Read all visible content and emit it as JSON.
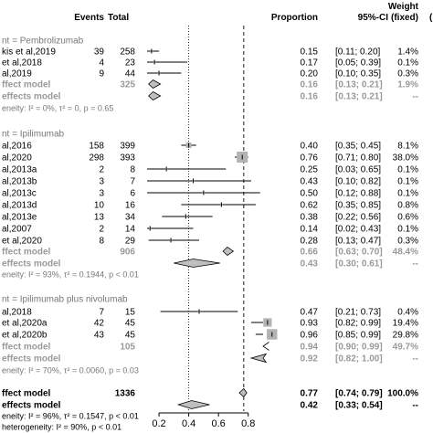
{
  "chart_data": {
    "type": "forest",
    "header": {
      "events": "Events",
      "total": "Total",
      "proportion": "Proportion",
      "ci": "95%-CI",
      "weight_fixed": "Weight",
      "weight_fixed_sub": "(fixed)",
      "weight_random_sub": "("
    },
    "xaxis": {
      "range": [
        0.12,
        0.9
      ],
      "ticks": [
        0.2,
        0.4,
        0.6,
        0.8
      ],
      "tick_labels": [
        "0.2",
        "0.4",
        "0.6",
        "0.8"
      ]
    },
    "reference_lines": {
      "solid": 0.4,
      "dashed_fixed": 0.77
    },
    "groups": [
      {
        "label": "nt = Pembrolizumab",
        "studies": [
          {
            "study": "kis et al,2019",
            "events": "39",
            "total": "258",
            "prop": 0.15,
            "lo": 0.11,
            "hi": 0.2,
            "prop_text": "0.15",
            "ci": "[0.11; 0.20]",
            "weight": "1.4%"
          },
          {
            "study": "et al,2018",
            "events": "4",
            "total": "23",
            "prop": 0.17,
            "lo": 0.05,
            "hi": 0.39,
            "prop_text": "0.17",
            "ci": "[0.05; 0.39]",
            "weight": "0.1%"
          },
          {
            "study": "al,2019",
            "events": "9",
            "total": "44",
            "prop": 0.2,
            "lo": 0.1,
            "hi": 0.35,
            "prop_text": "0.20",
            "ci": "[0.10; 0.35]",
            "weight": "0.3%"
          }
        ],
        "fixed": {
          "label": "ffect model",
          "total": "325",
          "prop": 0.16,
          "lo": 0.13,
          "hi": 0.21,
          "prop_text": "0.16",
          "ci": "[0.13; 0.21]",
          "weight": "1.9%"
        },
        "random": {
          "label": "effects model",
          "prop": 0.16,
          "lo": 0.13,
          "hi": 0.21,
          "prop_text": "0.16",
          "ci": "[0.13; 0.21]",
          "weight": "--"
        },
        "heterogeneity": "eneity: I² = 0%, τ² = 0, p = 0.65"
      },
      {
        "label": "nt = Ipilimumab",
        "studies": [
          {
            "study": "al,2016",
            "events": "158",
            "total": "399",
            "prop": 0.4,
            "lo": 0.35,
            "hi": 0.45,
            "prop_text": "0.40",
            "ci": "[0.35; 0.45]",
            "weight": "8.1%"
          },
          {
            "study": "al,2020",
            "events": "298",
            "total": "393",
            "prop": 0.76,
            "lo": 0.71,
            "hi": 0.8,
            "prop_text": "0.76",
            "ci": "[0.71; 0.80]",
            "weight": "38.0%"
          },
          {
            "study": "al,2013a",
            "events": "2",
            "total": "8",
            "prop": 0.25,
            "lo": 0.03,
            "hi": 0.65,
            "prop_text": "0.25",
            "ci": "[0.03; 0.65]",
            "weight": "0.1%"
          },
          {
            "study": "al,2013b",
            "events": "3",
            "total": "7",
            "prop": 0.43,
            "lo": 0.1,
            "hi": 0.82,
            "prop_text": "0.43",
            "ci": "[0.10; 0.82]",
            "weight": "0.1%"
          },
          {
            "study": "al,2013c",
            "events": "3",
            "total": "6",
            "prop": 0.5,
            "lo": 0.12,
            "hi": 0.88,
            "prop_text": "0.50",
            "ci": "[0.12; 0.88]",
            "weight": "0.1%"
          },
          {
            "study": "al,2013d",
            "events": "10",
            "total": "16",
            "prop": 0.62,
            "lo": 0.35,
            "hi": 0.85,
            "prop_text": "0.62",
            "ci": "[0.35; 0.85]",
            "weight": "0.8%"
          },
          {
            "study": "al,2013e",
            "events": "13",
            "total": "34",
            "prop": 0.38,
            "lo": 0.22,
            "hi": 0.56,
            "prop_text": "0.38",
            "ci": "[0.22; 0.56]",
            "weight": "0.6%"
          },
          {
            "study": "al,2007",
            "events": "2",
            "total": "14",
            "prop": 0.14,
            "prop_text": "0.14",
            "lo": 0.02,
            "hi": 0.43,
            "ci": "[0.02; 0.43]",
            "weight": "0.1%"
          },
          {
            "study": "et al,2020",
            "events": "8",
            "total": "29",
            "prop": 0.28,
            "lo": 0.13,
            "hi": 0.47,
            "prop_text": "0.28",
            "ci": "[0.13; 0.47]",
            "weight": "0.3%"
          }
        ],
        "fixed": {
          "label": "ffect model",
          "total": "906",
          "prop": 0.66,
          "lo": 0.63,
          "hi": 0.7,
          "prop_text": "0.66",
          "ci": "[0.63; 0.70]",
          "weight": "48.4%"
        },
        "random": {
          "label": "effects model",
          "prop": 0.43,
          "lo": 0.3,
          "hi": 0.61,
          "prop_text": "0.43",
          "ci": "[0.30; 0.61]",
          "weight": "--"
        },
        "heterogeneity": "eneity: I² = 93%, τ² = 0.1944, p < 0.01"
      },
      {
        "label": "nt = Ipilimumab plus nivolumab",
        "studies": [
          {
            "study": "al,2018",
            "events": "7",
            "total": "15",
            "prop": 0.47,
            "lo": 0.21,
            "hi": 0.73,
            "prop_text": "0.47",
            "ci": "[0.21; 0.73]",
            "weight": "0.4%"
          },
          {
            "study": "et al,2020a",
            "events": "42",
            "total": "45",
            "prop": 0.93,
            "lo": 0.82,
            "hi": 0.99,
            "prop_text": "0.93",
            "ci": "[0.82; 0.99]",
            "weight": "19.4%"
          },
          {
            "study": "et al,2020b",
            "events": "43",
            "total": "45",
            "prop": 0.96,
            "lo": 0.85,
            "hi": 0.99,
            "prop_text": "0.96",
            "ci": "[0.85; 0.99]",
            "weight": "29.8%"
          }
        ],
        "fixed": {
          "label": "ffect model",
          "total": "105",
          "prop": 0.94,
          "lo": 0.9,
          "hi": 0.99,
          "prop_text": "0.94",
          "ci": "[0.90; 0.99]",
          "weight": "49.7%"
        },
        "random": {
          "label": "effects model",
          "prop": 0.92,
          "lo": 0.82,
          "hi": 1.0,
          "prop_text": "0.92",
          "ci": "[0.82; 1.00]",
          "weight": "--"
        },
        "heterogeneity": "eneity: I² = 70%, τ² = 0.0060, p = 0.03"
      }
    ],
    "overall": {
      "fixed": {
        "label": "ffect model",
        "total": "1336",
        "prop": 0.77,
        "lo": 0.74,
        "hi": 0.79,
        "prop_text": "0.77",
        "ci": "[0.74; 0.79]",
        "weight": "100.0%"
      },
      "random": {
        "label": "effects model",
        "prop": 0.42,
        "lo": 0.33,
        "hi": 0.54,
        "prop_text": "0.42",
        "ci": "[0.33; 0.54]",
        "weight": "--"
      },
      "heterogeneity": "eneity: I² = 96%, τ² = 0.1547, p < 0.01",
      "subgroup_heterogeneity": "heterogeneity: I² = 90%, p < 0.01"
    },
    "colors": {
      "ink": "#000000",
      "summary_text": "#999999",
      "square": "#b3b3b3",
      "diamond_fill": "#bfbfbf"
    }
  }
}
